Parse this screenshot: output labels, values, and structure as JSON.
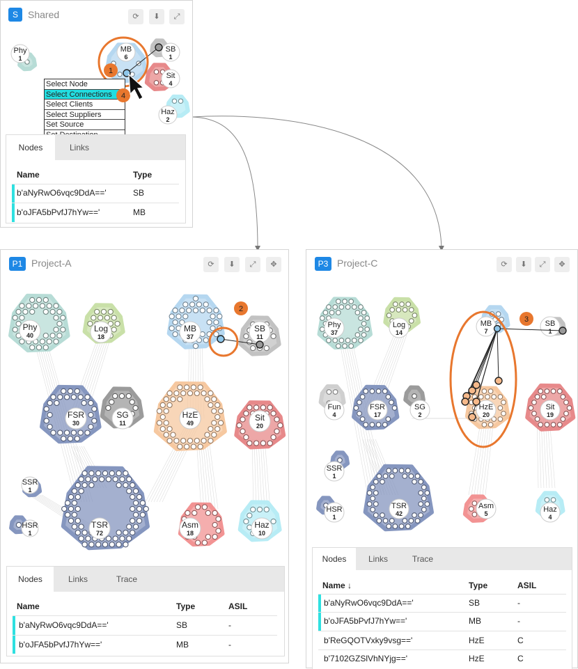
{
  "shared": {
    "badge": "S",
    "title": "Shared",
    "toolbar": {
      "refresh_icon": "refresh-icon",
      "download_icon": "download-icon",
      "expand_icon": "expand-icon"
    },
    "clusters": [
      {
        "label": "Phy",
        "count": "1"
      },
      {
        "label": "MB",
        "count": "6"
      },
      {
        "label": "SB",
        "count": "1"
      },
      {
        "label": "Sit",
        "count": "4"
      },
      {
        "label": "Haz",
        "count": "2"
      }
    ],
    "context_menu": [
      "Select Node",
      "Select Connections",
      "Select Clients",
      "Select Suppliers",
      "Set Source",
      "Set Destination"
    ],
    "markers": [
      "1",
      "4"
    ],
    "tabs": [
      "Nodes",
      "Links"
    ],
    "table": {
      "headers": [
        "Name",
        "Type"
      ],
      "rows": [
        [
          "b'aNyRwO6vqc9DdA=='",
          "SB"
        ],
        [
          "b'oJFA5bPvfJ7hYw=='",
          "MB"
        ]
      ]
    }
  },
  "project_a": {
    "badge": "P1",
    "title": "Project-A",
    "clusters": [
      {
        "label": "Phy",
        "count": "40"
      },
      {
        "label": "Log",
        "count": "18"
      },
      {
        "label": "MB",
        "count": "37"
      },
      {
        "label": "SB",
        "count": "11"
      },
      {
        "label": "FSR",
        "count": "30"
      },
      {
        "label": "SG",
        "count": "11"
      },
      {
        "label": "HzE",
        "count": "49"
      },
      {
        "label": "Sit",
        "count": "20"
      },
      {
        "label": "SSR",
        "count": "1"
      },
      {
        "label": "HSR",
        "count": "1"
      },
      {
        "label": "TSR",
        "count": "72"
      },
      {
        "label": "Asm",
        "count": "18"
      },
      {
        "label": "Haz",
        "count": "10"
      }
    ],
    "marker": "2",
    "tabs": [
      "Nodes",
      "Links",
      "Trace"
    ],
    "table": {
      "headers": [
        "Name",
        "Type",
        "ASIL"
      ],
      "rows": [
        [
          "b'aNyRwO6vqc9DdA=='",
          "SB",
          "-"
        ],
        [
          "b'oJFA5bPvfJ7hYw=='",
          "MB",
          "-"
        ]
      ]
    }
  },
  "project_c": {
    "badge": "P3",
    "title": "Project-C",
    "clusters": [
      {
        "label": "Phy",
        "count": "37"
      },
      {
        "label": "Log",
        "count": "14"
      },
      {
        "label": "MB",
        "count": "7"
      },
      {
        "label": "SB",
        "count": "1"
      },
      {
        "label": "Fun",
        "count": "4"
      },
      {
        "label": "FSR",
        "count": "17"
      },
      {
        "label": "SG",
        "count": "2"
      },
      {
        "label": "HzE",
        "count": "20"
      },
      {
        "label": "Sit",
        "count": "19"
      },
      {
        "label": "SSR",
        "count": "1"
      },
      {
        "label": "HSR",
        "count": "1"
      },
      {
        "label": "TSR",
        "count": "42"
      },
      {
        "label": "Asm",
        "count": "5"
      },
      {
        "label": "Haz",
        "count": "4"
      }
    ],
    "marker": "3",
    "tabs": [
      "Nodes",
      "Links",
      "Trace"
    ],
    "table": {
      "headers": [
        "Name ↓",
        "Type",
        "ASIL"
      ],
      "rows": [
        [
          "b'aNyRwO6vqc9DdA=='",
          "SB",
          "-"
        ],
        [
          "b'oJFA5bPvfJ7hYw=='",
          "MB",
          "-"
        ],
        [
          "b'ReGQOTVxky9vsg=='",
          "HzE",
          "C"
        ],
        [
          "b'7102GZSlVhNYjg=='",
          "HzE",
          "C"
        ]
      ]
    }
  },
  "colors": {
    "accent_blue": "#1e88e5",
    "selection_cyan": "#2fe0e0",
    "annotation_orange": "#e8772e",
    "Phy": "#b7dcd6",
    "Log": "#c9e0a8",
    "MB": "#b5d7f0",
    "SB": "#c2c2c2",
    "FSR": "#8596bf",
    "SG": "#9b9b9b",
    "HzE": "#f6c8a0",
    "Sit": "#e7898a",
    "SSR": "#8596bf",
    "HSR": "#8596bf",
    "TSR": "#8596bf",
    "Asm": "#f29393",
    "Haz": "#b7ecf5",
    "Fun": "#cfcfcf"
  }
}
